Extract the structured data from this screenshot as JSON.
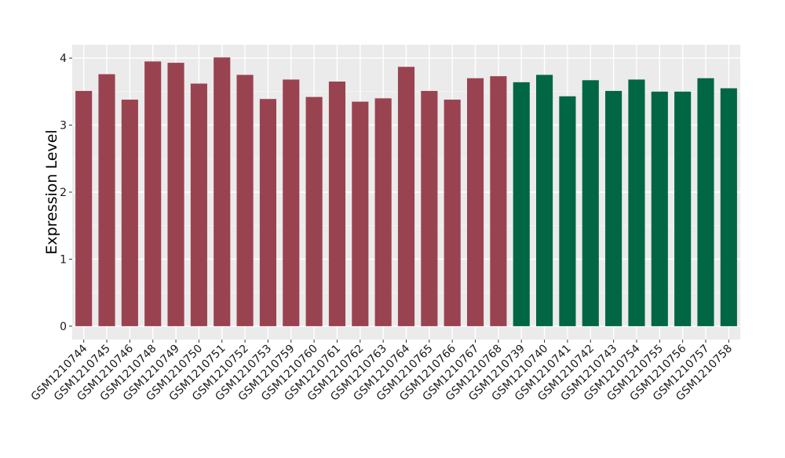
{
  "chart_data": {
    "type": "bar",
    "ylabel": "Expression Level",
    "xlabel": "",
    "ylim": [
      -0.2,
      4.2
    ],
    "yticks": [
      0,
      1,
      2,
      3,
      4
    ],
    "grid": true,
    "categories": [
      "GSM1210744",
      "GSM1210745",
      "GSM1210746",
      "GSM1210748",
      "GSM1210749",
      "GSM1210750",
      "GSM1210751",
      "GSM1210752",
      "GSM1210753",
      "GSM1210759",
      "GSM1210760",
      "GSM1210761",
      "GSM1210762",
      "GSM1210763",
      "GSM1210764",
      "GSM1210765",
      "GSM1210766",
      "GSM1210767",
      "GSM1210768",
      "GSM1210739",
      "GSM1210740",
      "GSM1210741",
      "GSM1210742",
      "GSM1210743",
      "GSM1210754",
      "GSM1210755",
      "GSM1210756",
      "GSM1210757",
      "GSM1210758"
    ],
    "values": [
      3.51,
      3.76,
      3.38,
      3.95,
      3.93,
      3.62,
      4.01,
      3.75,
      3.39,
      3.68,
      3.42,
      3.65,
      3.35,
      3.4,
      3.87,
      3.51,
      3.38,
      3.7,
      3.73,
      3.64,
      3.75,
      3.43,
      3.67,
      3.51,
      3.68,
      3.5,
      3.5,
      3.7,
      3.55
    ],
    "groups": [
      0,
      0,
      0,
      0,
      0,
      0,
      0,
      0,
      0,
      0,
      0,
      0,
      0,
      0,
      0,
      0,
      0,
      0,
      0,
      1,
      1,
      1,
      1,
      1,
      1,
      1,
      1,
      1,
      1
    ],
    "group_colors": [
      "#9a4350",
      "#006644"
    ]
  }
}
